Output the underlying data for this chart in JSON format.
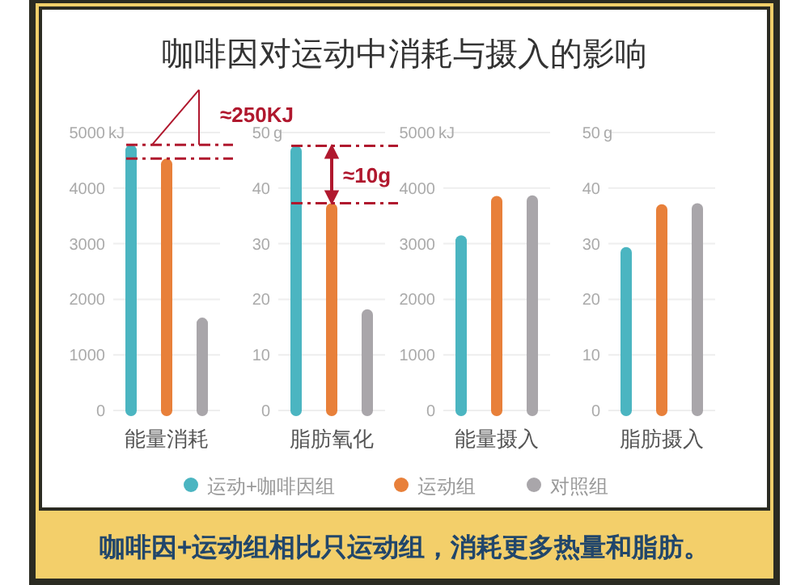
{
  "chart_data": [
    {
      "type": "bar",
      "title": "咖啡因对运动中消耗与摄入的影响",
      "categories": [
        "能量消耗"
      ],
      "series": [
        {
          "name": "运动+咖啡因组",
          "color": "#4bb5c1",
          "values": [
            4780
          ]
        },
        {
          "name": "运动组",
          "color": "#e8803a",
          "values": [
            4530
          ]
        },
        {
          "name": "对照组",
          "color": "#a9a6aa",
          "values": [
            1670
          ]
        }
      ],
      "ylim": [
        0,
        5000
      ],
      "yticks": [
        0,
        1000,
        2000,
        3000,
        4000,
        5000
      ],
      "ylabel": "kJ",
      "grid": "y",
      "legend": "bottom",
      "ref_lines": [
        {
          "axis": "y",
          "value": 4780,
          "color": "#b0182e",
          "line_style": "dashed"
        },
        {
          "axis": "y",
          "value": 4530,
          "color": "#b0182e",
          "line_style": "dashed"
        }
      ],
      "annotations": [
        "≈250KJ"
      ]
    },
    {
      "type": "bar",
      "categories": [
        "脂肪氧化"
      ],
      "series": [
        {
          "color": "#4bb5c1",
          "values": [
            47.6
          ]
        },
        {
          "color": "#e8803a",
          "values": [
            37.3
          ]
        },
        {
          "color": "#a9a6aa",
          "values": [
            18.2
          ]
        }
      ],
      "ylim": [
        0,
        50
      ],
      "yticks": [
        0,
        10,
        20,
        30,
        40,
        50
      ],
      "ylabel": "g",
      "grid": "y",
      "ref_lines": [
        {
          "axis": "y",
          "value": 47.6,
          "color": "#b0182e",
          "line_style": "dashed"
        },
        {
          "axis": "y",
          "value": 37.3,
          "color": "#b0182e",
          "line_style": "dashed"
        }
      ],
      "annotations": [
        "≈10g"
      ]
    },
    {
      "type": "bar",
      "categories": [
        "能量摄入"
      ],
      "series": [
        {
          "color": "#4bb5c1",
          "values": [
            3150
          ]
        },
        {
          "color": "#e8803a",
          "values": [
            3860
          ]
        },
        {
          "color": "#a9a6aa",
          "values": [
            3870
          ]
        }
      ],
      "ylim": [
        0,
        5000
      ],
      "yticks": [
        0,
        1000,
        2000,
        3000,
        4000,
        5000
      ],
      "ylabel": "kJ",
      "grid": "y"
    },
    {
      "type": "bar",
      "categories": [
        "脂肪摄入"
      ],
      "series": [
        {
          "color": "#4bb5c1",
          "values": [
            29.4
          ]
        },
        {
          "color": "#e8803a",
          "values": [
            37.1
          ]
        },
        {
          "color": "#a9a6aa",
          "values": [
            37.3
          ]
        }
      ],
      "ylim": [
        0,
        50
      ],
      "yticks": [
        0,
        10,
        20,
        30,
        40,
        50
      ],
      "ylabel": "g",
      "grid": "y",
      "annotations": [
        "咖啡因+运动组相比只运动组，消耗更多热量和脂肪。"
      ]
    }
  ]
}
